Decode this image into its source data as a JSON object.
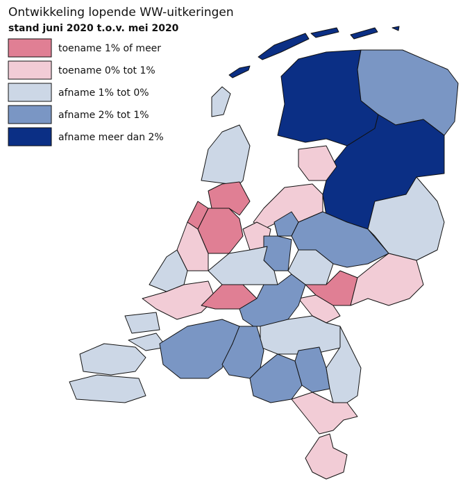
{
  "map": {
    "title": "Ontwikkeling lopende WW-uitkeringen",
    "subtitle": "stand juni 2020 t.o.v. mei 2020",
    "legend": [
      {
        "label": "toename 1% of meer",
        "color": "#e07f94"
      },
      {
        "label": "toename 0% tot 1%",
        "color": "#f2ccd6"
      },
      {
        "label": "afname 1% tot 0%",
        "color": "#ccd7e6"
      },
      {
        "label": "afname 2% tot 1%",
        "color": "#7a96c4"
      },
      {
        "label": "afname meer dan 2%",
        "color": "#0b2f85"
      }
    ]
  }
}
